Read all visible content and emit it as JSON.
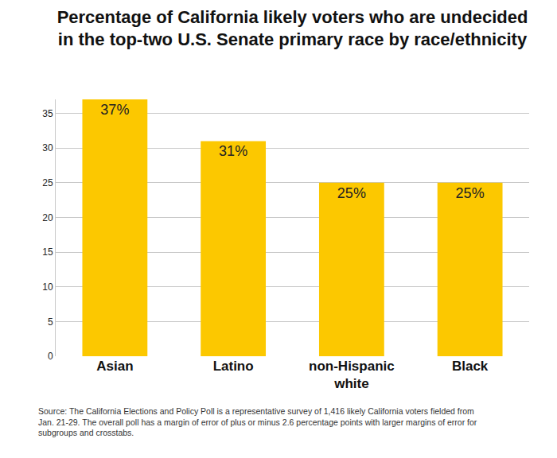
{
  "chart_data": {
    "type": "bar",
    "title": "Percentage of California likely voters who are undecided in the top-two U.S. Senate primary race by race/ethnicity",
    "categories": [
      "Asian",
      "Latino",
      "non-Hispanic white",
      "Black"
    ],
    "values": [
      37,
      31,
      25,
      25
    ],
    "value_labels": [
      "37%",
      "31%",
      "25%",
      "25%"
    ],
    "data_labels": true,
    "color": "#fcc800",
    "ylim": [
      0,
      37
    ],
    "yticks": [
      0,
      5,
      10,
      15,
      20,
      25,
      30,
      35
    ],
    "grid": true,
    "note": "Source: The California Elections and Policy Poll is a representative survey of 1,416 likely California voters fielded from Jan. 21-29. The overall poll has a margin of error of plus or minus 2.6 percentage points with larger margins of error for subgroups and crosstabs."
  }
}
